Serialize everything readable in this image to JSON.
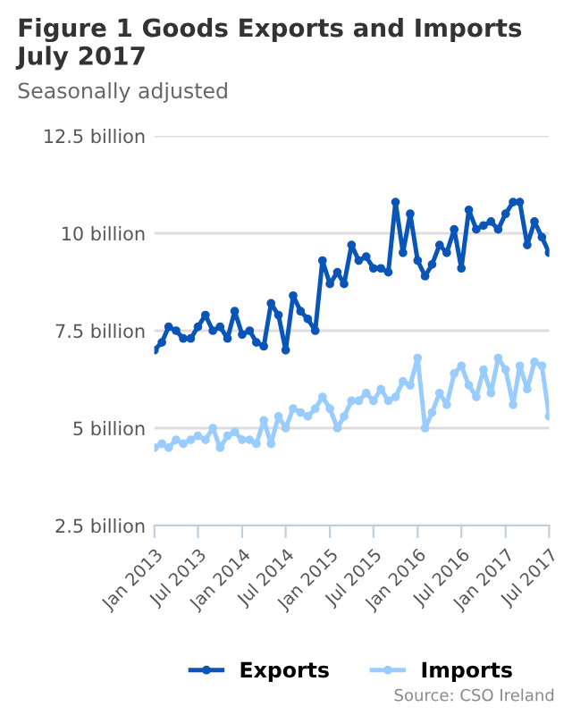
{
  "chart_data": {
    "type": "line",
    "title": "Figure 1 Goods Exports and Imports July 2017",
    "subtitle": "Seasonally adjusted",
    "annotations": [
      "Source: CSO Ireland"
    ],
    "x": [
      "2013-01",
      "2013-02",
      "2013-03",
      "2013-04",
      "2013-05",
      "2013-06",
      "2013-07",
      "2013-08",
      "2013-09",
      "2013-10",
      "2013-11",
      "2013-12",
      "2014-01",
      "2014-02",
      "2014-03",
      "2014-04",
      "2014-05",
      "2014-06",
      "2014-07",
      "2014-08",
      "2014-09",
      "2014-10",
      "2014-11",
      "2014-12",
      "2015-01",
      "2015-02",
      "2015-03",
      "2015-04",
      "2015-05",
      "2015-06",
      "2015-07",
      "2015-08",
      "2015-09",
      "2015-10",
      "2015-11",
      "2015-12",
      "2016-01",
      "2016-02",
      "2016-03",
      "2016-04",
      "2016-05",
      "2016-06",
      "2016-07",
      "2016-08",
      "2016-09",
      "2016-10",
      "2016-11",
      "2016-12",
      "2017-01",
      "2017-02",
      "2017-03",
      "2017-04",
      "2017-05",
      "2017-06",
      "2017-07"
    ],
    "series": [
      {
        "name": "Exports",
        "color": "#0a55b8",
        "values": [
          7.0,
          7.2,
          7.6,
          7.5,
          7.3,
          7.3,
          7.6,
          7.9,
          7.5,
          7.6,
          7.3,
          8.0,
          7.4,
          7.5,
          7.2,
          7.1,
          8.2,
          7.9,
          7.0,
          8.4,
          8.0,
          7.8,
          7.5,
          9.3,
          8.7,
          9.0,
          8.7,
          9.7,
          9.3,
          9.4,
          9.1,
          9.1,
          9.0,
          10.8,
          9.5,
          10.5,
          9.3,
          8.9,
          9.2,
          9.7,
          9.5,
          10.1,
          9.1,
          10.6,
          10.1,
          10.2,
          10.3,
          10.1,
          10.5,
          10.8,
          10.8,
          9.7,
          10.3,
          9.9,
          9.5
        ]
      },
      {
        "name": "Imports",
        "color": "#99ccff",
        "values": [
          4.5,
          4.6,
          4.5,
          4.7,
          4.6,
          4.7,
          4.8,
          4.7,
          5.0,
          4.5,
          4.8,
          4.9,
          4.7,
          4.7,
          4.6,
          5.2,
          4.6,
          5.3,
          5.0,
          5.5,
          5.4,
          5.3,
          5.5,
          5.8,
          5.5,
          5.0,
          5.3,
          5.7,
          5.7,
          5.9,
          5.7,
          6.0,
          5.7,
          5.8,
          6.2,
          6.1,
          6.8,
          5.0,
          5.4,
          5.9,
          5.6,
          6.4,
          6.6,
          6.1,
          5.8,
          6.5,
          5.9,
          6.8,
          6.5,
          5.6,
          6.6,
          6.0,
          6.7,
          6.6,
          5.3
        ]
      }
    ],
    "xlim": [
      "2013-01",
      "2017-07"
    ],
    "xticks": [
      {
        "value": "2013-01",
        "label": "Jan 2013"
      },
      {
        "value": "2013-07",
        "label": "Jul 2013"
      },
      {
        "value": "2014-01",
        "label": "Jan 2014"
      },
      {
        "value": "2014-07",
        "label": "Jul 2014"
      },
      {
        "value": "2015-01",
        "label": "Jan 2015"
      },
      {
        "value": "2015-07",
        "label": "Jul 2015"
      },
      {
        "value": "2016-01",
        "label": "Jan 2016"
      },
      {
        "value": "2016-07",
        "label": "Jul 2016"
      },
      {
        "value": "2017-01",
        "label": "Jan 2017"
      },
      {
        "value": "2017-07",
        "label": "Jul 2017"
      }
    ],
    "ylim": [
      2.5,
      12.5
    ],
    "yticks": [
      {
        "value": 2.5,
        "label": "2.5 billion"
      },
      {
        "value": 5,
        "label": "5 billion"
      },
      {
        "value": 7.5,
        "label": "7.5 billion"
      },
      {
        "value": 10,
        "label": "10 billion"
      },
      {
        "value": 12.5,
        "label": "12.5 billion"
      }
    ],
    "grid": "y",
    "legend": "bottom",
    "marker": "circle",
    "line_style": "solid"
  }
}
